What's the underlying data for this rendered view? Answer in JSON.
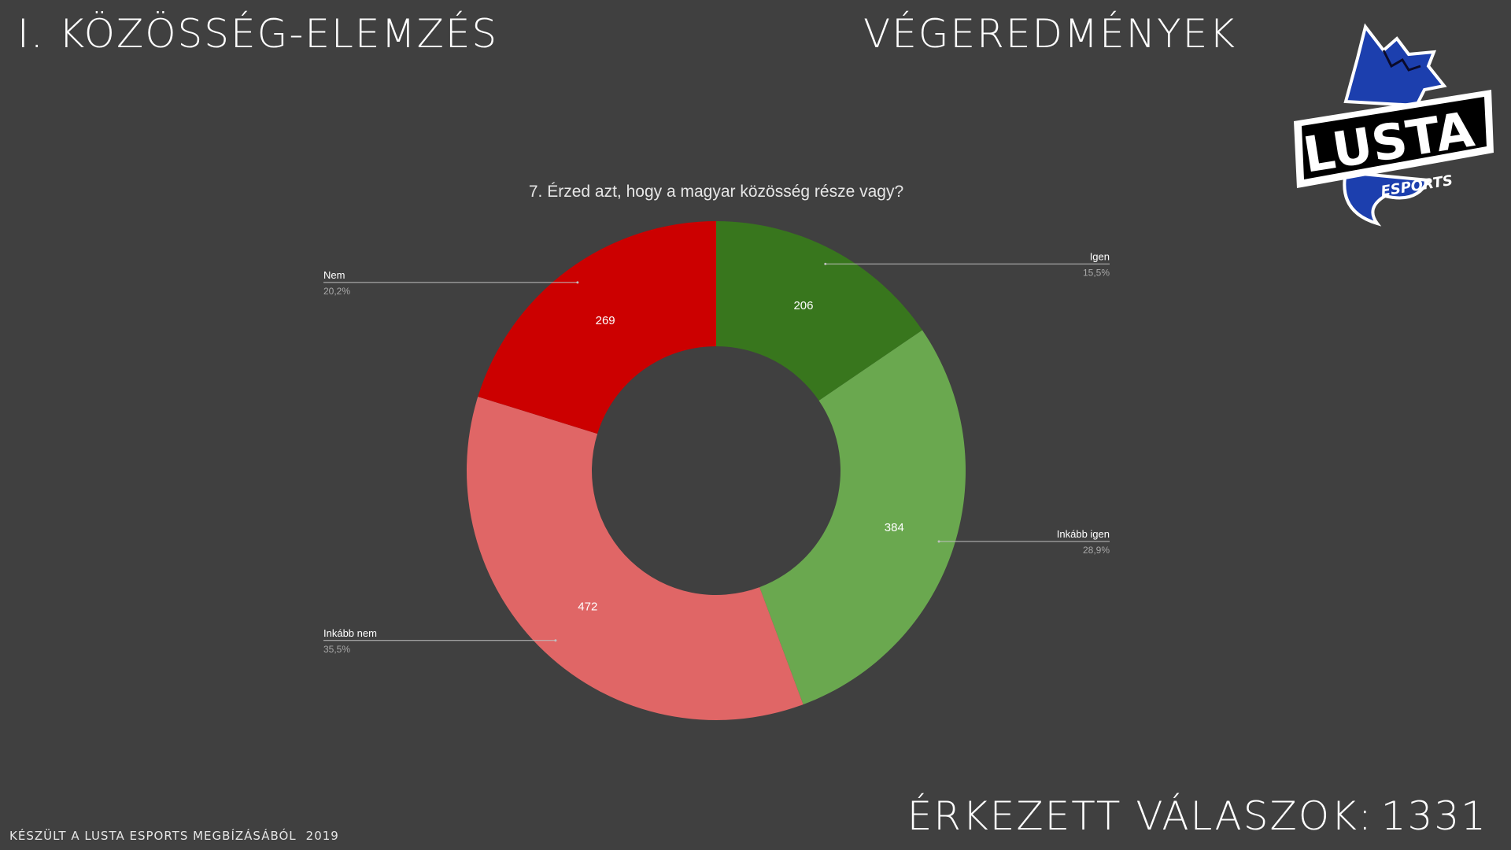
{
  "header": {
    "title": "I. KÖZÖSSÉG-ELEMZÉS",
    "subtitle": "VÉGEREDMÉNYEK"
  },
  "logo": {
    "main_text": "LUSTA",
    "sub_text": "ESPORTS"
  },
  "footer": {
    "credit": "KÉSZÜLT A LUSTA ESPORTS MEGBÍZÁSÁBÓL",
    "year": "2019"
  },
  "responses": {
    "label": "ÉRKEZETT VÁLASZOK:",
    "count": "1331"
  },
  "colors": {
    "background": "#404040",
    "igen": "#38761d",
    "inkabb_igen": "#6aa84f",
    "inkabb_nem": "#e06666",
    "nem": "#cc0000"
  },
  "chart_data": {
    "type": "pie",
    "donut": true,
    "title": "7. Érzed azt, hogy a magyar közösség része vagy?",
    "categories": [
      "Igen",
      "Inkább igen",
      "Inkább nem",
      "Nem"
    ],
    "values": [
      206,
      384,
      472,
      269
    ],
    "value_labels": [
      "206",
      "384",
      "472",
      "269"
    ],
    "percent_labels": [
      "15,5%",
      "28,9%",
      "35,5%",
      "20,2%"
    ],
    "colors": [
      "#38761d",
      "#6aa84f",
      "#e06666",
      "#cc0000"
    ]
  }
}
